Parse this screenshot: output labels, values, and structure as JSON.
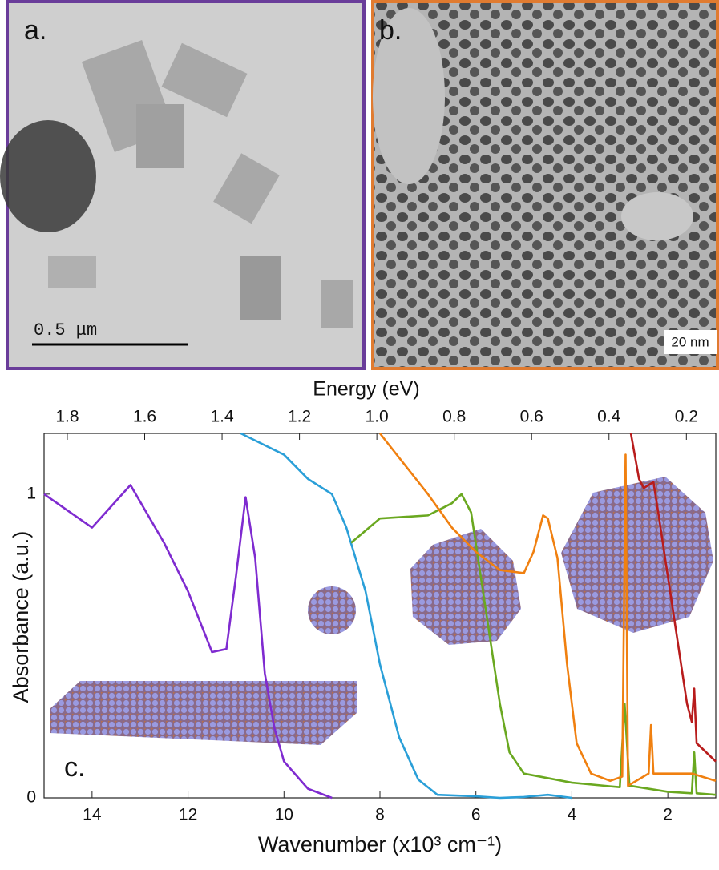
{
  "panels": {
    "a": {
      "label": "a.",
      "scale_bar": "0.5 μm"
    },
    "b": {
      "label": "b.",
      "scale_bar": "20 nm"
    }
  },
  "chart_data": {
    "type": "line",
    "panel_label": "c.",
    "x_label": "Wavenumber (x10³ cm⁻¹)",
    "y_label": "Absorbance (a.u.)",
    "x2_label": "Energy (eV)",
    "xlim": [
      15,
      1
    ],
    "xticks": [
      14,
      12,
      10,
      8,
      6,
      4,
      2
    ],
    "ylim": [
      0,
      1.2
    ],
    "yticks": [
      0,
      1
    ],
    "x2lim": [
      1.86,
      0.124
    ],
    "x2ticks": [
      1.8,
      1.6,
      1.4,
      1.2,
      {
        "value": 1,
        "label": "1.0"
      },
      0.8,
      0.6,
      0.4,
      0.2
    ],
    "series": [
      {
        "color": "#7f2bd0",
        "x": [
          15,
          14,
          13.2,
          12.5,
          12,
          11.5,
          11.2,
          11,
          10.8,
          10.6,
          10.4,
          10.2,
          10,
          9.5,
          9
        ],
        "values": [
          1.0,
          0.89,
          1.03,
          0.84,
          0.68,
          0.48,
          0.49,
          0.73,
          0.99,
          0.79,
          0.41,
          0.23,
          0.12,
          0.03,
          0
        ]
      },
      {
        "color": "#2a9fd8",
        "x": [
          10.9,
          10,
          9.5,
          9,
          8.7,
          8.3,
          8,
          7.6,
          7.2,
          6.8,
          6,
          5.5,
          5,
          4.5,
          4
        ],
        "values": [
          1.2,
          1.13,
          1.05,
          1.0,
          0.89,
          0.68,
          0.44,
          0.2,
          0.06,
          0.01,
          0.005,
          0,
          0.003,
          0.01,
          0
        ]
      },
      {
        "color": "#6aa820",
        "x": [
          8.6,
          8,
          7,
          6.5,
          6.3,
          6.1,
          5.9,
          5.7,
          5.5,
          5.3,
          5,
          4,
          3,
          2.9,
          2.8,
          2,
          1.5,
          1.45,
          1.4,
          1
        ],
        "values": [
          0.84,
          0.92,
          0.93,
          0.97,
          1.0,
          0.94,
          0.73,
          0.52,
          0.31,
          0.15,
          0.08,
          0.05,
          0.035,
          0.31,
          0.04,
          0.02,
          0.015,
          0.15,
          0.015,
          0.01
        ]
      },
      {
        "color": "#f08010",
        "x": [
          8,
          7.5,
          7,
          6.5,
          6,
          5.5,
          5,
          4.8,
          4.6,
          4.5,
          4.3,
          4.1,
          3.9,
          3.6,
          3.2,
          2.95,
          2.88,
          2.83,
          2.4,
          2.35,
          2.3,
          1.5,
          1
        ],
        "values": [
          1.2,
          1.1,
          1.0,
          0.89,
          0.81,
          0.75,
          0.74,
          0.81,
          0.93,
          0.92,
          0.79,
          0.44,
          0.18,
          0.08,
          0.056,
          0.07,
          1.13,
          0.04,
          0.08,
          0.24,
          0.08,
          0.08,
          0.056
        ]
      },
      {
        "color": "#b81c1c",
        "x": [
          2.77,
          2.6,
          2.5,
          2.3,
          2.2,
          2,
          1.8,
          1.6,
          1.5,
          1.45,
          1.4,
          1.2,
          1
        ],
        "values": [
          1.2,
          1.05,
          1.02,
          1.04,
          0.94,
          0.73,
          0.52,
          0.31,
          0.25,
          0.36,
          0.18,
          0.15,
          0.12
        ]
      }
    ]
  }
}
